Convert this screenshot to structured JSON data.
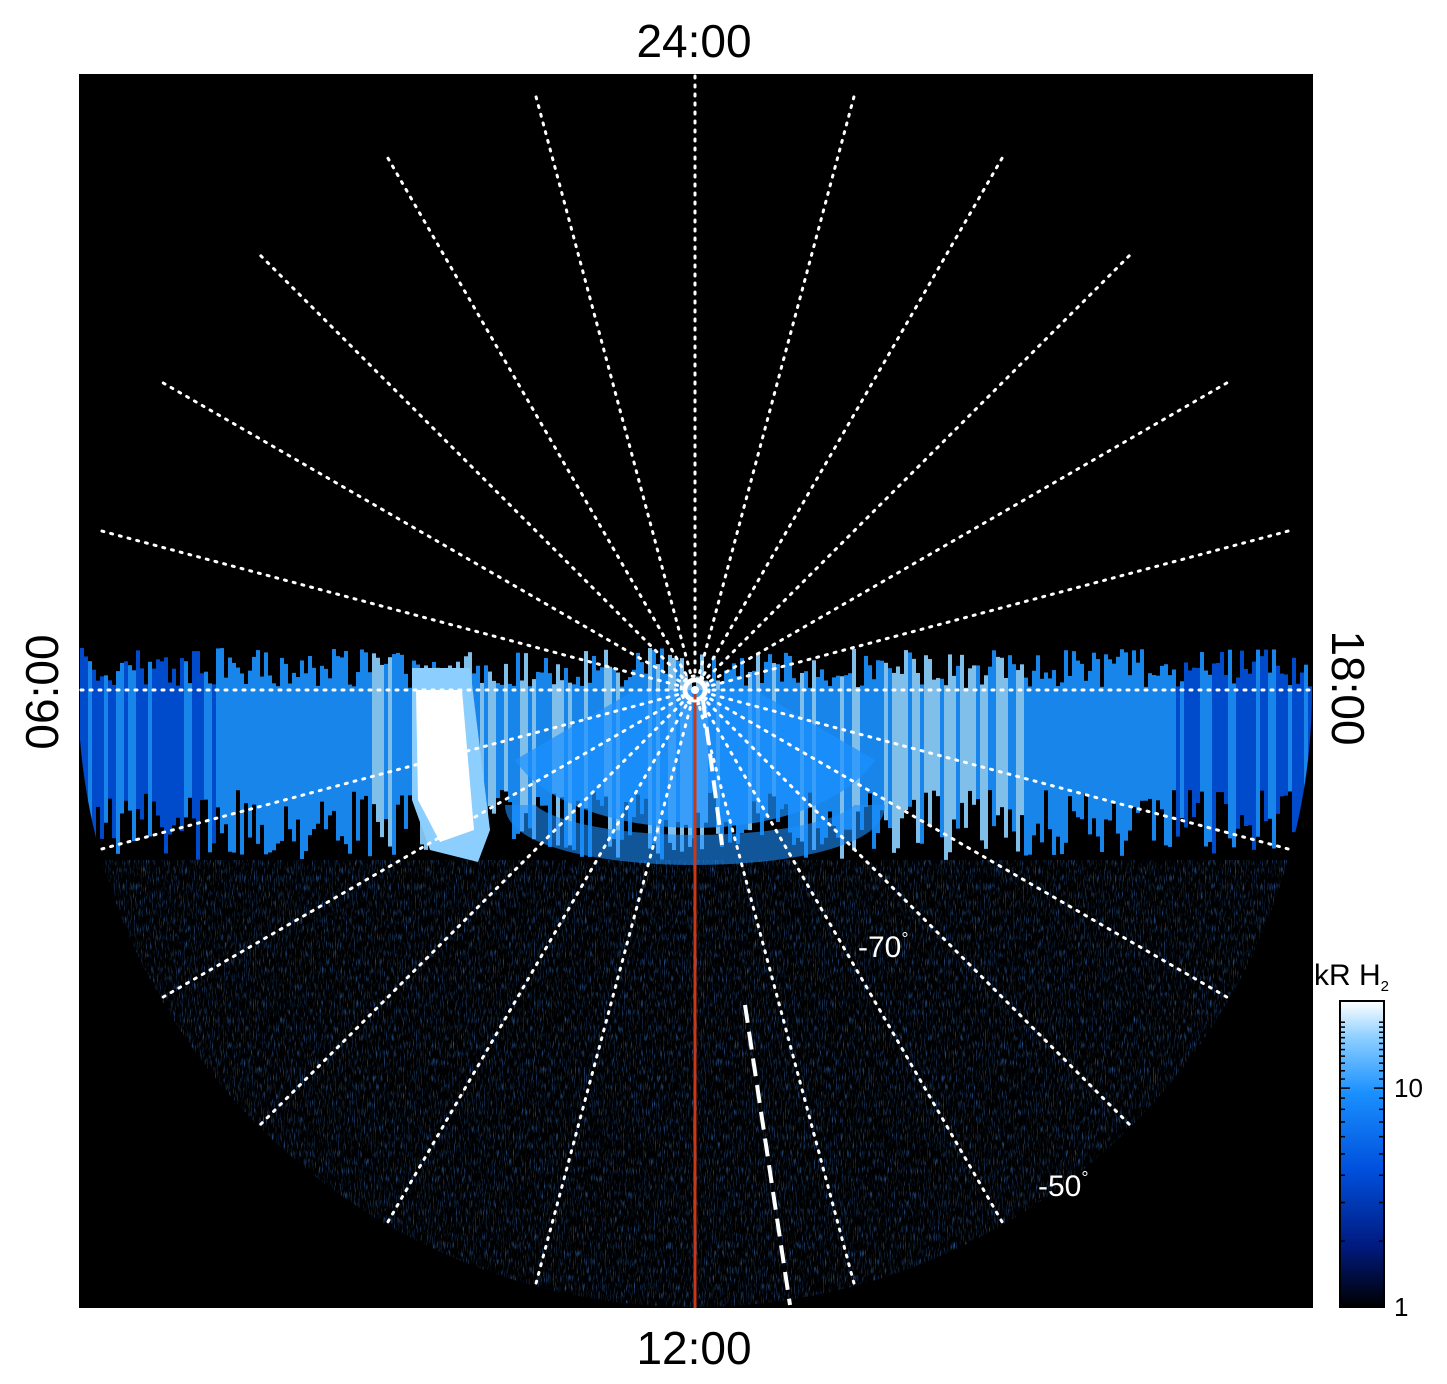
{
  "chart_data": {
    "type": "heatmap",
    "projection": "polar",
    "hemisphere": "south",
    "local_time_labels": {
      "top": "24:00",
      "bottom": "12:00",
      "left": "06:00",
      "right": "18:00"
    },
    "latitude_labels": [
      "-70",
      "-50"
    ],
    "latitude_grid": [
      -90,
      -80,
      -70,
      -60,
      -50,
      -40
    ],
    "longitude_grid_step_hours": 1,
    "grid": "dotted",
    "reference_lines": [
      {
        "kind": "solid",
        "color": "#c8391a",
        "local_time": "12:00"
      },
      {
        "kind": "dashed",
        "color": "#ffffff",
        "local_time": "11:30"
      }
    ],
    "emission_band": {
      "description_kind": "auroral emission",
      "colatitude_range": [
        0,
        50
      ],
      "bright_spot_local_time": "07:30",
      "bright_spot_latitude": -75
    },
    "colorbar": {
      "title": "kR H",
      "title_sub": "2",
      "scale": "log",
      "range": [
        1,
        25
      ],
      "ticks": [
        {
          "value": 1,
          "label": "1"
        },
        {
          "value": 10,
          "label": "10"
        }
      ],
      "colors": [
        "#000000",
        "#001a80",
        "#0050dd",
        "#1a90ff",
        "#8ccfff",
        "#ffffff"
      ]
    }
  }
}
